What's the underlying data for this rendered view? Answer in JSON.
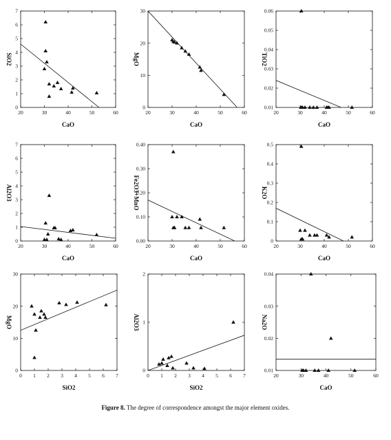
{
  "caption": {
    "label": "Figure 8.",
    "text": "The degree of correspondence amongst the major element oxides."
  },
  "chart_data": [
    {
      "type": "scatter",
      "xlabel": "CaO",
      "ylabel": "SiO2",
      "xlim": [
        20,
        60
      ],
      "ylim": [
        0,
        7
      ],
      "xticks": [
        "20",
        "30",
        "40",
        "50",
        "60"
      ],
      "yticks": [
        "0",
        "1",
        "2",
        "3",
        "4",
        "5",
        "6",
        "7"
      ],
      "x": [
        30.5,
        30.5,
        31,
        30,
        32,
        32,
        34,
        35.5,
        37,
        41.5,
        42,
        52
      ],
      "y": [
        6.2,
        4.1,
        3.3,
        2.8,
        1.7,
        0.8,
        1.55,
        1.8,
        1.35,
        1.1,
        1.4,
        1.05
      ],
      "fit": {
        "x1": 20,
        "y1": 4.6,
        "x2": 53,
        "y2": 0
      }
    },
    {
      "type": "scatter",
      "xlabel": "CaO",
      "ylabel": "MgO",
      "xlim": [
        20,
        60
      ],
      "ylim": [
        0,
        30
      ],
      "xticks": [
        "20",
        "30",
        "40",
        "50",
        "60"
      ],
      "yticks": [
        "0",
        "10",
        "20",
        "30"
      ],
      "x": [
        30,
        30.5,
        31,
        32,
        34,
        35.5,
        37,
        41.5,
        42,
        51.5
      ],
      "y": [
        21,
        20.5,
        20.3,
        20,
        18.5,
        17.5,
        16.5,
        12.5,
        11.5,
        4
      ],
      "fit": {
        "x1": 20,
        "y1": 30,
        "x2": 57,
        "y2": 0
      }
    },
    {
      "type": "scatter",
      "xlabel": "CaO",
      "ylabel": "TiO2",
      "xlim": [
        20,
        60
      ],
      "ylim": [
        0.01,
        0.06
      ],
      "xticks": [
        "20",
        "30",
        "40",
        "50",
        "60"
      ],
      "yticks": [
        "0.01",
        "0.02",
        "0.03",
        "0.04",
        "0.05",
        "0.06"
      ],
      "x": [
        30.3,
        30.5,
        31,
        32,
        34,
        35.5,
        37,
        41,
        41.5,
        42,
        51.5,
        30.5
      ],
      "y": [
        0.01,
        0.01,
        0.01,
        0.01,
        0.01,
        0.01,
        0.01,
        0.01,
        0.01,
        0.01,
        0.01,
        0.06
      ],
      "fit": {
        "x1": 20,
        "y1": 0.024,
        "x2": 47,
        "y2": 0.01
      }
    },
    {
      "type": "scatter",
      "xlabel": "CaO",
      "ylabel": "Al2O3",
      "xlim": [
        20,
        60
      ],
      "ylim": [
        0,
        7
      ],
      "xticks": [
        "20",
        "30",
        "40",
        "50",
        "60"
      ],
      "yticks": [
        "0",
        "1",
        "2",
        "3",
        "4",
        "5",
        "6",
        "7"
      ],
      "x": [
        30.5,
        30,
        31,
        31.5,
        34,
        34.5,
        36,
        37,
        41,
        42,
        52,
        32
      ],
      "y": [
        1.3,
        0.1,
        0.1,
        0.5,
        0.95,
        0.95,
        0.15,
        0.1,
        0.75,
        0.8,
        0.45,
        3.3
      ],
      "fit": {
        "x1": 20,
        "y1": 1.05,
        "x2": 60,
        "y2": 0.2
      }
    },
    {
      "type": "scatter",
      "xlabel": "CaO",
      "ylabel": "Fe2O3+MnO",
      "xlim": [
        20,
        60
      ],
      "ylim": [
        0,
        0.4
      ],
      "xticks": [
        "20",
        "30",
        "40",
        "50",
        "60"
      ],
      "yticks": [
        "0.00",
        "0.10",
        "0.20",
        "0.30",
        "0.40"
      ],
      "x": [
        30.5,
        30,
        30.5,
        31,
        32,
        34,
        35.5,
        37,
        41.5,
        42,
        51.5
      ],
      "y": [
        0.37,
        0.1,
        0.055,
        0.055,
        0.1,
        0.1,
        0.055,
        0.055,
        0.09,
        0.055,
        0.055
      ],
      "fit": {
        "x1": 20,
        "y1": 0.17,
        "x2": 56,
        "y2": 0
      }
    },
    {
      "type": "scatter",
      "xlabel": "CaO",
      "ylabel": "K2O",
      "xlim": [
        20,
        60
      ],
      "ylim": [
        0,
        0.5
      ],
      "xticks": [
        "20",
        "30",
        "40",
        "50",
        "60"
      ],
      "yticks": [
        "0",
        "0.1",
        "0.2",
        "0.3",
        "0.4",
        "0.5"
      ],
      "x": [
        30.5,
        30,
        30.5,
        31,
        32,
        34,
        36,
        37,
        41,
        42,
        51.5
      ],
      "y": [
        0.49,
        0.055,
        0.01,
        0.01,
        0.055,
        0.03,
        0.03,
        0.03,
        0.03,
        0.02,
        0.02
      ],
      "fit": {
        "x1": 20,
        "y1": 0.17,
        "x2": 48,
        "y2": 0
      }
    },
    {
      "type": "scatter",
      "xlabel": "SiO2",
      "ylabel": "MgO",
      "xlim": [
        0,
        7
      ],
      "ylim": [
        0,
        30
      ],
      "xticks": [
        "0",
        "1",
        "2",
        "3",
        "4",
        "5",
        "6",
        "7"
      ],
      "yticks": [
        "0",
        "10",
        "20",
        "30"
      ],
      "x": [
        0.8,
        1.0,
        1.4,
        1.5,
        1.7,
        1.8,
        2.8,
        3.3,
        4.1,
        6.2,
        1.1,
        1.0
      ],
      "y": [
        20,
        17.5,
        16.5,
        18.5,
        17.5,
        16.5,
        21,
        20.5,
        21.2,
        20.4,
        12.5,
        4
      ],
      "fit": {
        "x1": 0,
        "y1": 12.5,
        "x2": 7,
        "y2": 25
      }
    },
    {
      "type": "scatter",
      "xlabel": "SiO2",
      "ylabel": "Al2O3",
      "xlim": [
        0,
        7
      ],
      "ylim": [
        0,
        2
      ],
      "xticks": [
        "0",
        "1",
        "2",
        "3",
        "4",
        "5",
        "6",
        "7"
      ],
      "yticks": [
        "0",
        "1",
        "2"
      ],
      "x": [
        0.8,
        1.0,
        1.1,
        1.4,
        1.5,
        1.7,
        1.8,
        2.8,
        3.3,
        4.1,
        6.2
      ],
      "y": [
        0.13,
        0.15,
        0.23,
        0.1,
        0.26,
        0.29,
        0.05,
        0.15,
        0.05,
        0.04,
        1.0
      ],
      "fit": {
        "x1": 0,
        "y1": 0,
        "x2": 7,
        "y2": 0.73
      }
    },
    {
      "type": "scatter",
      "xlabel": "CaO",
      "ylabel": "Na2O",
      "xlim": [
        20,
        60
      ],
      "ylim": [
        0.01,
        0.04
      ],
      "xticks": [
        "20",
        "30",
        "40",
        "50",
        "60"
      ],
      "yticks": [
        "0.01",
        "0.02",
        "0.03",
        "0.04"
      ],
      "x": [
        30.5,
        31,
        32,
        35.5,
        37,
        41,
        51.5,
        34,
        42
      ],
      "y": [
        0.01,
        0.01,
        0.01,
        0.01,
        0.01,
        0.01,
        0.01,
        0.04,
        0.02
      ],
      "fit": {
        "x1": 20,
        "y1": 0.0135,
        "x2": 60,
        "y2": 0.0135
      }
    }
  ]
}
